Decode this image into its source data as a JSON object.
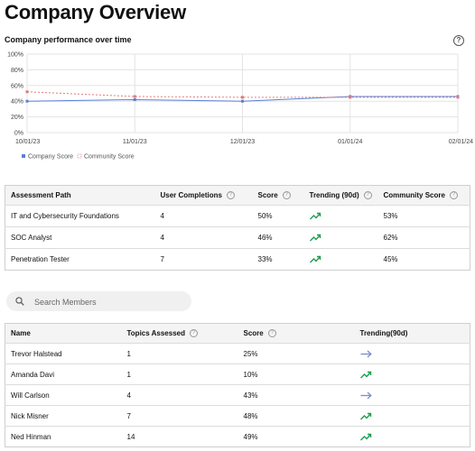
{
  "page": {
    "title": "Company Overview"
  },
  "chart": {
    "title": "Company performance over time"
  },
  "chart_data": {
    "type": "line",
    "x": [
      "10/01/23",
      "11/01/23",
      "12/01/23",
      "01/01/24",
      "02/01/24"
    ],
    "series": [
      {
        "name": "Company Score",
        "values": [
          40,
          42,
          40,
          46,
          46
        ],
        "color": "#5b7fd6",
        "style": "solid"
      },
      {
        "name": "Community Score",
        "values": [
          52,
          46,
          45,
          45,
          45
        ],
        "color": "#e07b7b",
        "style": "dashed"
      }
    ],
    "y_ticks": [
      "0%",
      "20%",
      "40%",
      "60%",
      "80%",
      "100%"
    ],
    "ylim": [
      0,
      100
    ],
    "grid": true,
    "legend_position": "bottom-left"
  },
  "assessment_table": {
    "headers": {
      "path": "Assessment Path",
      "completions": "User Completions",
      "score": "Score",
      "trending": "Trending (90d)",
      "community": "Community Score"
    },
    "rows": [
      {
        "path": "IT and Cybersecurity Foundations",
        "completions": "4",
        "score": "50%",
        "trend": "up",
        "community": "53%"
      },
      {
        "path": "SOC Analyst",
        "completions": "4",
        "score": "46%",
        "trend": "up",
        "community": "62%"
      },
      {
        "path": "Penetration Tester",
        "completions": "7",
        "score": "33%",
        "trend": "up",
        "community": "45%"
      }
    ]
  },
  "search": {
    "placeholder": "Search Members"
  },
  "members_table": {
    "headers": {
      "name": "Name",
      "topics": "Topics Assessed",
      "score": "Score",
      "trending": "Trending(90d)"
    },
    "rows": [
      {
        "name": "Trevor Halstead",
        "topics": "1",
        "score": "25%",
        "trend": "flat"
      },
      {
        "name": "Amanda Davi",
        "topics": "1",
        "score": "10%",
        "trend": "up"
      },
      {
        "name": "Will Carlson",
        "topics": "4",
        "score": "43%",
        "trend": "flat"
      },
      {
        "name": "Nick Misner",
        "topics": "7",
        "score": "48%",
        "trend": "up"
      },
      {
        "name": "Ned Hinman",
        "topics": "14",
        "score": "49%",
        "trend": "up"
      }
    ]
  },
  "colors": {
    "trend_up": "#1f9d4f",
    "trend_flat": "#7a8fc9"
  },
  "icons": {
    "help": "question-circle-icon",
    "search": "magnifier-icon",
    "trend_up": "trending-up-icon",
    "trend_flat": "arrow-right-icon"
  }
}
